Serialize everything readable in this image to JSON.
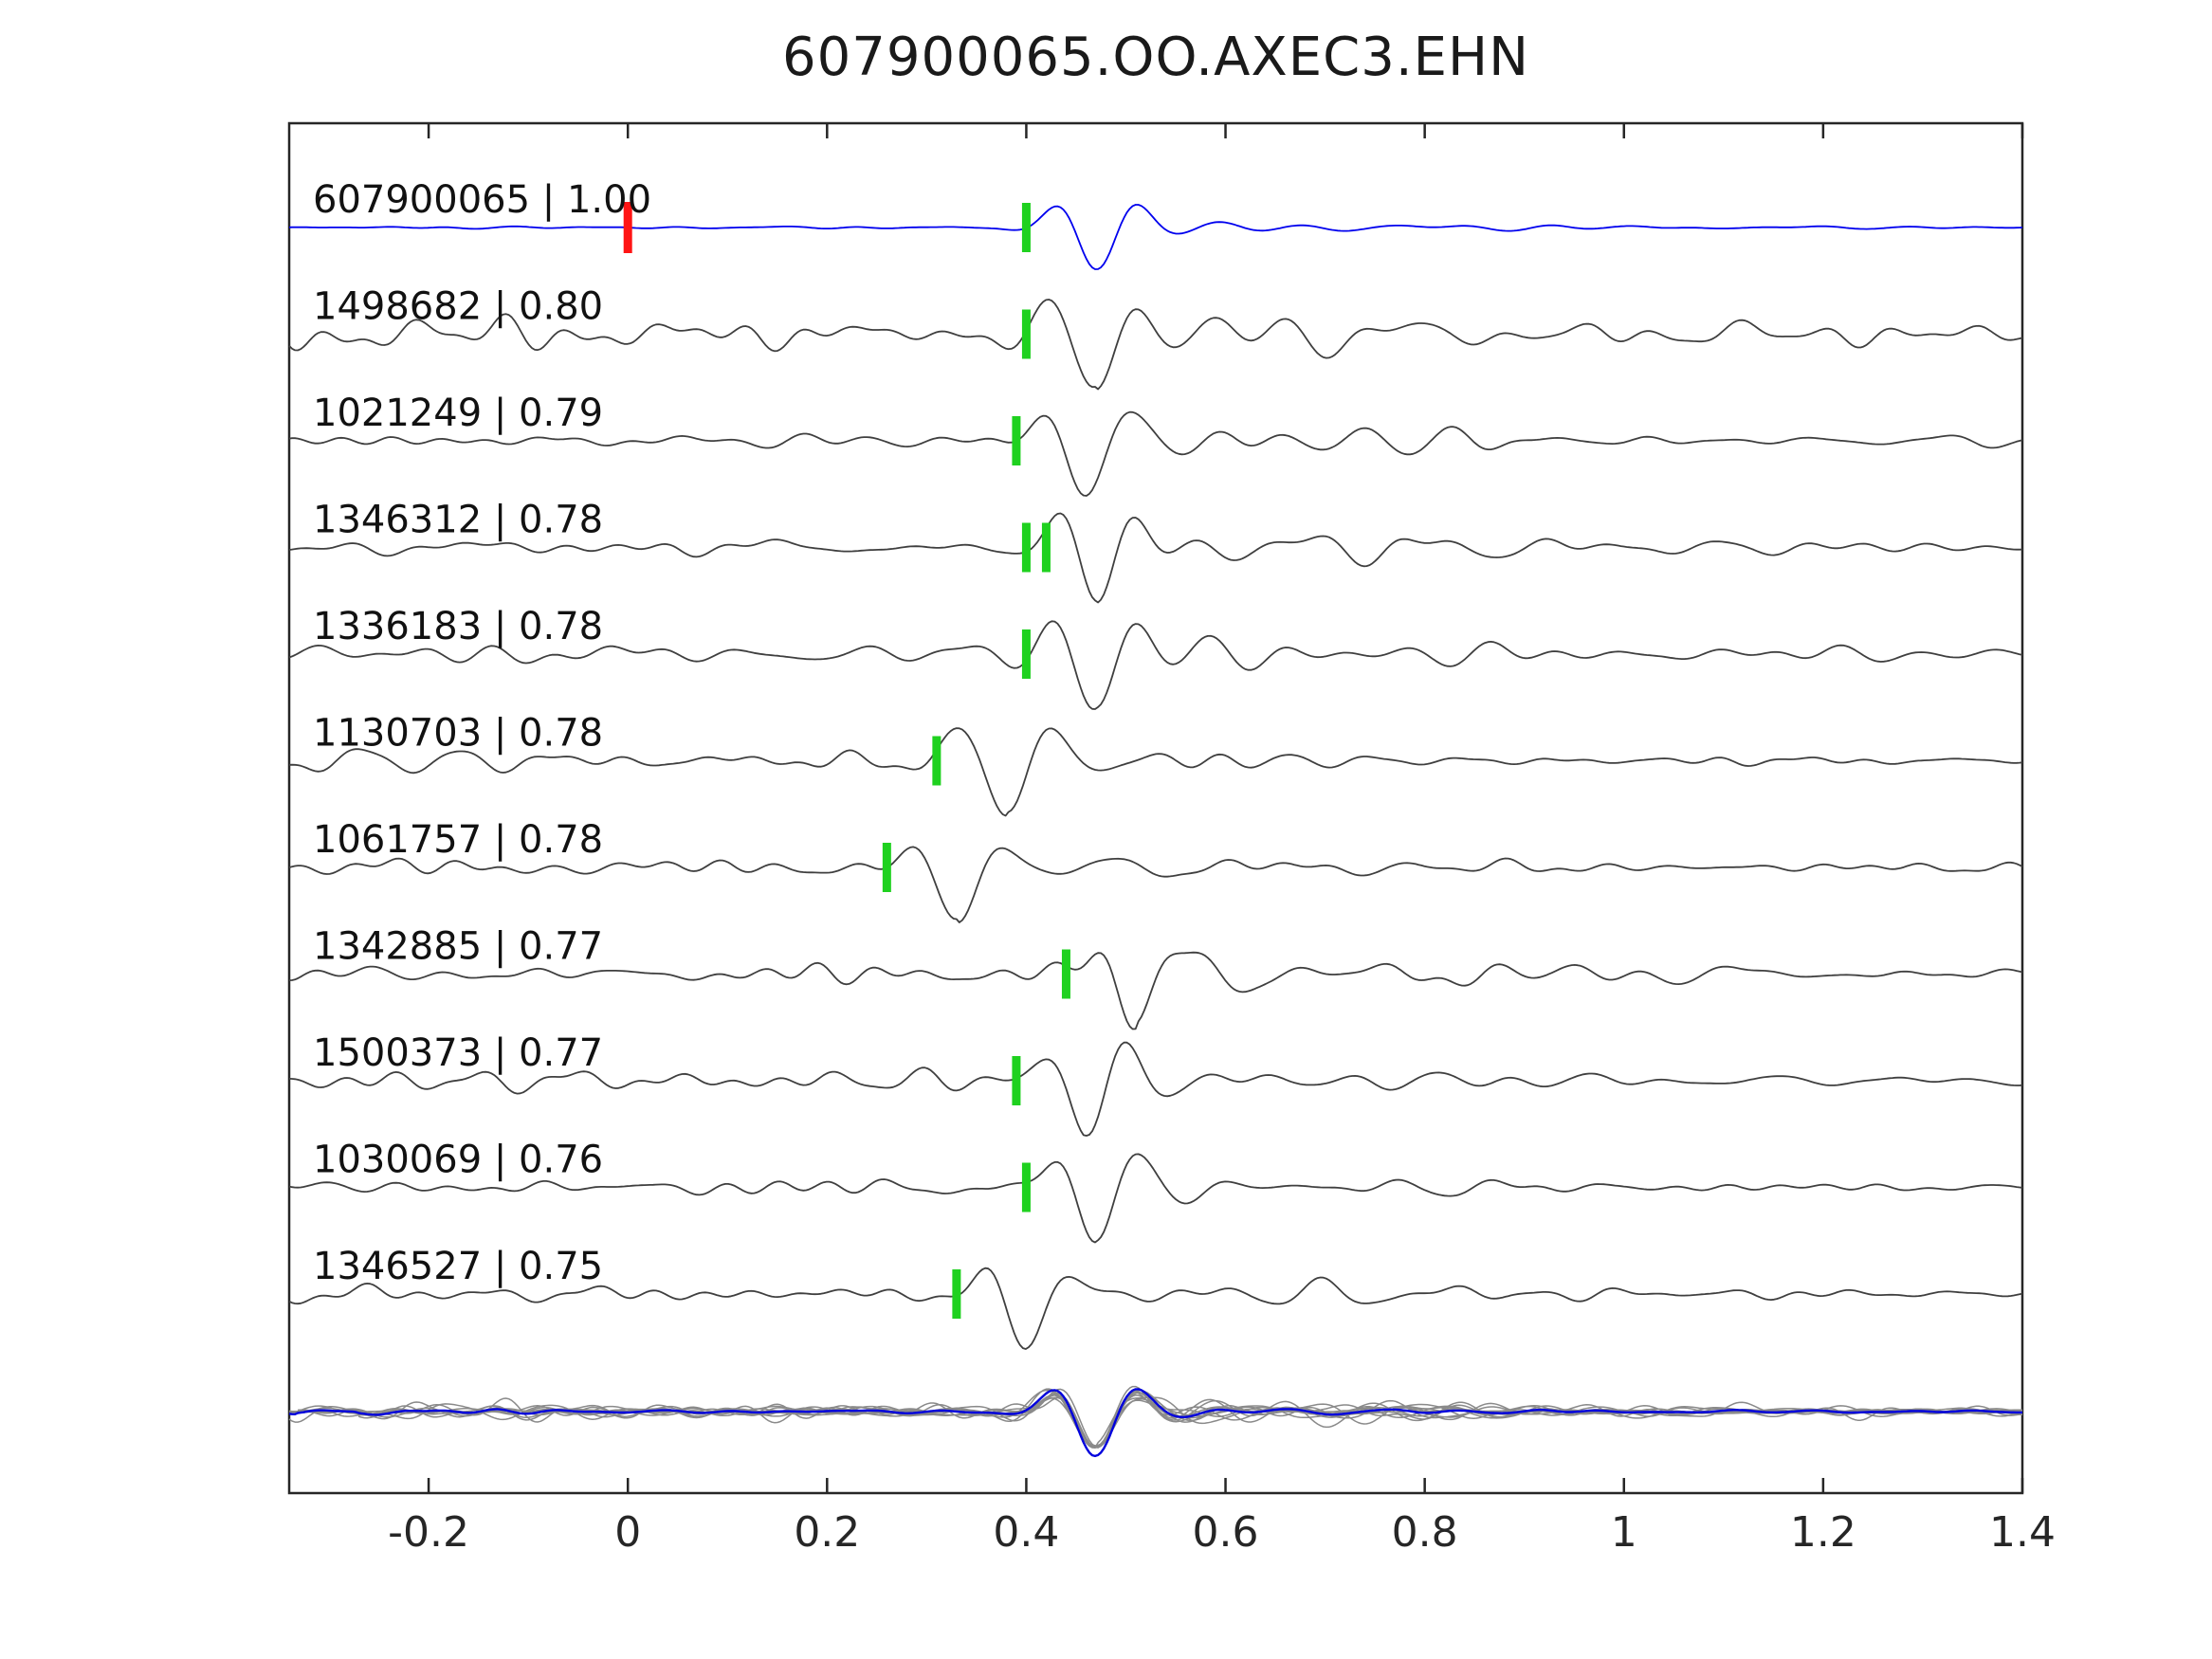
{
  "title": "607900065.OO.AXEC3.EHN",
  "chart_data": {
    "type": "line",
    "title": "607900065.OO.AXEC3.EHN",
    "description": "Template-matching waveform similarity plot: reference trace (blue) plus 10 matched event traces (gray) with pick markers, and an aligned overlay of all traces with stack (blue) at the bottom",
    "xlabel": "",
    "ylabel": "",
    "xlim": [
      -0.34,
      1.4
    ],
    "x_ticks": [
      -0.2,
      0,
      0.2,
      0.4,
      0.6,
      0.8,
      1,
      1.2,
      1.4
    ],
    "x_tick_labels": [
      "-0.2",
      "0",
      "0.2",
      "0.4",
      "0.6",
      "0.8",
      "1",
      "1.2",
      "1.4"
    ],
    "grid": false,
    "legend_position": "none",
    "reference_trace_color": "#0000ee",
    "template_trace_color": "#3f3f3f",
    "overlay_trace_color": "#8a8a8a",
    "overlay_stack_color": "#0000dd",
    "pick_marker_color": "#1fd11f",
    "reference_marker_color": "#ff1414",
    "reference_marker_time": 0.0,
    "align_time": 0.4,
    "traces": [
      {
        "label": "607900065 | 1.00",
        "id": "607900065",
        "correlation": 1.0,
        "pick_times": [
          0.4
        ],
        "is_reference": true,
        "seed": 11
      },
      {
        "label": "1498682 | 0.80",
        "id": "1498682",
        "correlation": 0.8,
        "pick_times": [
          0.4
        ],
        "is_reference": false,
        "seed": 23
      },
      {
        "label": "1021249 | 0.79",
        "id": "1021249",
        "correlation": 0.79,
        "pick_times": [
          0.39
        ],
        "is_reference": false,
        "seed": 37
      },
      {
        "label": "1346312 | 0.78",
        "id": "1346312",
        "correlation": 0.78,
        "pick_times": [
          0.4,
          0.42
        ],
        "is_reference": false,
        "seed": 41
      },
      {
        "label": "1336183 | 0.78",
        "id": "1336183",
        "correlation": 0.78,
        "pick_times": [
          0.4
        ],
        "is_reference": false,
        "seed": 59
      },
      {
        "label": "1130703 | 0.78",
        "id": "1130703",
        "correlation": 0.78,
        "pick_times": [
          0.31
        ],
        "is_reference": false,
        "seed": 67
      },
      {
        "label": "1061757 | 0.78",
        "id": "1061757",
        "correlation": 0.78,
        "pick_times": [
          0.26
        ],
        "is_reference": false,
        "seed": 79
      },
      {
        "label": "1342885 | 0.77",
        "id": "1342885",
        "correlation": 0.77,
        "pick_times": [
          0.44
        ],
        "is_reference": false,
        "seed": 83
      },
      {
        "label": "1500373 | 0.77",
        "id": "1500373",
        "correlation": 0.77,
        "pick_times": [
          0.39
        ],
        "is_reference": false,
        "seed": 97
      },
      {
        "label": "1030069 | 0.76",
        "id": "1030069",
        "correlation": 0.76,
        "pick_times": [
          0.4
        ],
        "is_reference": false,
        "seed": 103
      },
      {
        "label": "1346527 | 0.75",
        "id": "1346527",
        "correlation": 0.75,
        "pick_times": [
          0.33
        ],
        "is_reference": false,
        "seed": 113
      }
    ]
  }
}
